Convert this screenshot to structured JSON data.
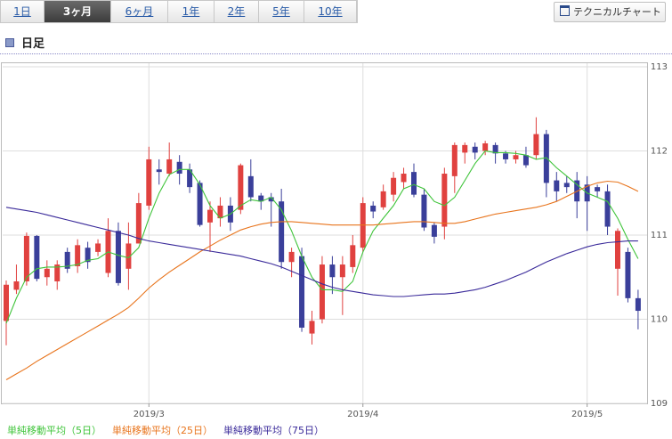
{
  "tabs": [
    "1日",
    "3ヶ月",
    "6ヶ月",
    "1年",
    "2年",
    "5年",
    "10年"
  ],
  "selected_tab": 1,
  "button": "テクニカルチャート",
  "heading": "日足",
  "chart_data": {
    "type": "candlestick",
    "categories": [
      null,
      null,
      null,
      null,
      null,
      null,
      null,
      null,
      null,
      null,
      null,
      null,
      null,
      null,
      "2019/3",
      null,
      null,
      null,
      null,
      null,
      null,
      null,
      null,
      null,
      null,
      null,
      null,
      null,
      null,
      null,
      null,
      null,
      null,
      null,
      null,
      "2019/4",
      null,
      null,
      null,
      null,
      null,
      null,
      null,
      null,
      null,
      null,
      null,
      null,
      null,
      null,
      null,
      null,
      null,
      null,
      null,
      null,
      null,
      "2019/5",
      null,
      null,
      null,
      null,
      null
    ],
    "open": [
      109.98,
      110.35,
      110.45,
      110.99,
      110.5,
      110.45,
      110.8,
      110.63,
      110.85,
      110.8,
      110.55,
      111.05,
      110.6,
      110.9,
      111.35,
      111.78,
      111.73,
      111.87,
      111.78,
      111.62,
      111.15,
      111.2,
      111.35,
      111.3,
      111.7,
      111.47,
      111.45,
      111.4,
      110.68,
      110.75,
      109.83,
      110.0,
      110.65,
      110.5,
      110.62,
      110.85,
      111.35,
      111.33,
      111.48,
      111.63,
      111.75,
      111.48,
      111.12,
      111.1,
      111.7,
      111.98,
      112.05,
      112.0,
      112.07,
      111.97,
      111.9,
      111.95,
      111.95,
      112.2,
      111.65,
      111.62,
      111.65,
      111.6,
      111.57,
      111.52,
      110.6,
      110.8,
      110.25
    ],
    "high": [
      110.46,
      110.65,
      111.03,
      111.0,
      110.7,
      110.7,
      110.85,
      110.95,
      110.92,
      110.95,
      111.2,
      111.15,
      111.15,
      111.5,
      112.05,
      111.9,
      112.1,
      111.95,
      111.85,
      111.65,
      111.4,
      111.45,
      111.45,
      111.85,
      111.9,
      111.5,
      111.5,
      111.55,
      110.85,
      110.85,
      110.1,
      110.75,
      110.75,
      110.75,
      111.0,
      111.45,
      111.4,
      111.6,
      111.75,
      111.8,
      111.85,
      111.55,
      111.15,
      111.8,
      112.1,
      112.1,
      112.1,
      112.12,
      112.1,
      112.0,
      112.0,
      112.05,
      112.4,
      112.25,
      111.75,
      111.7,
      111.75,
      111.7,
      111.6,
      111.6,
      111.08,
      110.85,
      110.35
    ],
    "low": [
      109.69,
      110.3,
      110.4,
      110.45,
      110.4,
      110.35,
      110.55,
      110.55,
      110.6,
      110.75,
      110.5,
      110.4,
      110.35,
      110.9,
      111.3,
      111.6,
      111.7,
      111.6,
      111.5,
      111.1,
      110.8,
      111.1,
      111.05,
      111.25,
      111.4,
      111.3,
      111.1,
      110.6,
      110.5,
      109.85,
      109.7,
      109.95,
      110.3,
      110.05,
      110.55,
      110.8,
      111.2,
      111.3,
      111.4,
      111.55,
      111.45,
      111.05,
      110.9,
      110.95,
      111.5,
      111.85,
      111.9,
      111.95,
      111.85,
      111.85,
      111.85,
      111.8,
      111.9,
      111.45,
      111.4,
      111.5,
      111.2,
      111.05,
      111.45,
      111.0,
      110.28,
      110.2,
      109.88
    ],
    "close": [
      110.41,
      110.45,
      110.99,
      110.48,
      110.6,
      110.65,
      110.6,
      110.88,
      110.68,
      110.9,
      111.05,
      110.43,
      110.9,
      111.38,
      111.9,
      111.75,
      111.9,
      111.73,
      111.57,
      111.12,
      111.3,
      111.35,
      111.15,
      111.83,
      111.45,
      111.4,
      111.4,
      110.68,
      110.8,
      109.9,
      109.98,
      110.65,
      110.5,
      110.65,
      110.88,
      111.38,
      111.28,
      111.52,
      111.68,
      111.73,
      111.48,
      111.09,
      110.98,
      111.73,
      112.07,
      112.07,
      111.98,
      112.09,
      111.97,
      111.9,
      111.95,
      111.83,
      112.2,
      111.62,
      111.52,
      111.57,
      111.4,
      111.4,
      111.52,
      111.1,
      111.05,
      110.25,
      110.1
    ],
    "up_color": "#e0413f",
    "down_color": "#3a3f9a",
    "series": [
      {
        "name": "単純移動平均（5日）",
        "color": "#3fc43a",
        "values": [
          109.95,
          110.25,
          110.5,
          110.6,
          110.62,
          110.62,
          110.63,
          110.65,
          110.7,
          110.72,
          110.8,
          110.76,
          110.73,
          110.85,
          111.2,
          111.5,
          111.72,
          111.78,
          111.78,
          111.6,
          111.35,
          111.2,
          111.25,
          111.35,
          111.42,
          111.4,
          111.45,
          111.3,
          111.05,
          110.75,
          110.5,
          110.35,
          110.35,
          110.33,
          110.45,
          110.8,
          111.05,
          111.2,
          111.35,
          111.55,
          111.6,
          111.55,
          111.4,
          111.35,
          111.45,
          111.65,
          111.85,
          112.0,
          111.98,
          111.98,
          111.97,
          111.95,
          111.9,
          111.92,
          111.8,
          111.7,
          111.6,
          111.5,
          111.45,
          111.4,
          111.2,
          110.95,
          110.72
        ]
      },
      {
        "name": "単純移動平均（25日）",
        "color": "#e8741c",
        "values": [
          109.28,
          109.35,
          109.42,
          109.5,
          109.57,
          109.64,
          109.71,
          109.78,
          109.85,
          109.92,
          109.99,
          110.06,
          110.14,
          110.25,
          110.37,
          110.47,
          110.56,
          110.64,
          110.72,
          110.8,
          110.87,
          110.94,
          111.0,
          111.06,
          111.1,
          111.13,
          111.15,
          111.16,
          111.16,
          111.15,
          111.14,
          111.13,
          111.12,
          111.12,
          111.12,
          111.12,
          111.12,
          111.13,
          111.14,
          111.15,
          111.16,
          111.16,
          111.15,
          111.14,
          111.14,
          111.16,
          111.19,
          111.22,
          111.25,
          111.27,
          111.29,
          111.31,
          111.33,
          111.36,
          111.4,
          111.46,
          111.52,
          111.58,
          111.62,
          111.64,
          111.63,
          111.58,
          111.52
        ]
      },
      {
        "name": "単純移動平均（75日）",
        "color": "#3a2a9a",
        "values": [
          111.33,
          111.31,
          111.29,
          111.27,
          111.24,
          111.21,
          111.18,
          111.15,
          111.12,
          111.09,
          111.06,
          111.03,
          111.0,
          110.96,
          110.93,
          110.91,
          110.89,
          110.87,
          110.85,
          110.83,
          110.81,
          110.79,
          110.77,
          110.75,
          110.72,
          110.69,
          110.66,
          110.62,
          110.57,
          110.52,
          110.47,
          110.42,
          110.38,
          110.35,
          110.33,
          110.31,
          110.29,
          110.28,
          110.27,
          110.27,
          110.28,
          110.29,
          110.3,
          110.3,
          110.31,
          110.33,
          110.35,
          110.38,
          110.42,
          110.46,
          110.51,
          110.56,
          110.62,
          110.68,
          110.73,
          110.78,
          110.82,
          110.86,
          110.89,
          110.91,
          110.92,
          110.93,
          110.93
        ]
      }
    ],
    "ylim": [
      109,
      113
    ],
    "yticks": [
      109,
      110,
      111,
      112,
      113
    ],
    "grid": true
  }
}
